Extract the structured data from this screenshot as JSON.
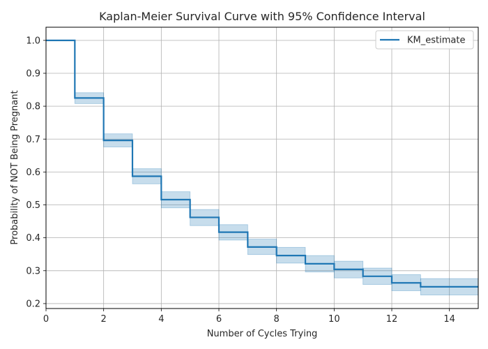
{
  "chart_data": {
    "type": "line",
    "title": "Kaplan-Meier Survival Curve with 95% Confidence Interval",
    "xlabel": "Number of Cycles Trying",
    "ylabel": "Probability of NOT Being Pregnant",
    "xlim": [
      0,
      15
    ],
    "ylim": [
      0.185,
      1.04
    ],
    "x_ticks": [
      0,
      2,
      4,
      6,
      8,
      10,
      12,
      14
    ],
    "y_ticks": [
      0.2,
      0.3,
      0.4,
      0.5,
      0.6,
      0.7,
      0.8,
      0.9,
      1.0
    ],
    "y_tick_labels": [
      "0.2",
      "0.3",
      "0.4",
      "0.5",
      "0.6",
      "0.7",
      "0.8",
      "0.9",
      "1.0"
    ],
    "grid": true,
    "legend_position": "top-right",
    "step": "post",
    "series": [
      {
        "name": "KM_estimate",
        "color": "#1f77b4",
        "x": [
          0,
          1,
          2,
          3,
          4,
          5,
          6,
          7,
          8,
          9,
          10,
          11,
          12,
          13,
          15
        ],
        "values": [
          1.0,
          0.825,
          0.696,
          0.587,
          0.516,
          0.462,
          0.417,
          0.372,
          0.346,
          0.321,
          0.304,
          0.283,
          0.263,
          0.251,
          0.251
        ],
        "ci_lower": [
          1.0,
          0.808,
          0.676,
          0.564,
          0.491,
          0.437,
          0.393,
          0.349,
          0.323,
          0.296,
          0.278,
          0.258,
          0.239,
          0.226,
          0.226
        ],
        "ci_upper": [
          1.0,
          0.841,
          0.716,
          0.61,
          0.54,
          0.486,
          0.44,
          0.396,
          0.371,
          0.346,
          0.329,
          0.308,
          0.288,
          0.276,
          0.276
        ]
      }
    ]
  }
}
